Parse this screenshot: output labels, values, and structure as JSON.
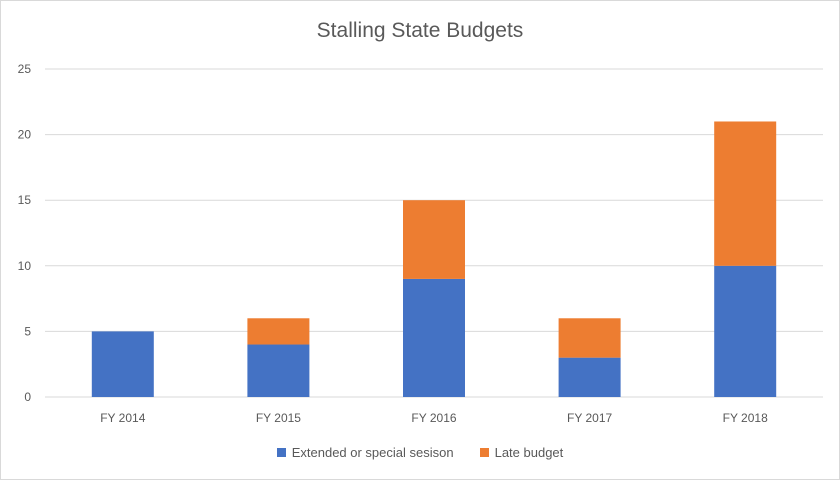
{
  "chart_data": {
    "type": "bar",
    "stacked": true,
    "title": "Stalling State Budgets",
    "categories": [
      "FY 2014",
      "FY 2015",
      "FY 2016",
      "FY 2017",
      "FY 2018"
    ],
    "series": [
      {
        "name": "Extended or special sesison",
        "color": "#4472C4",
        "values": [
          5,
          4,
          9,
          3,
          10
        ]
      },
      {
        "name": "Late budget",
        "color": "#ED7D31",
        "values": [
          0,
          2,
          6,
          3,
          11
        ]
      }
    ],
    "ylim": [
      0,
      25
    ],
    "yticks": [
      0,
      5,
      10,
      15,
      20,
      25
    ],
    "grid": true,
    "legend_position": "bottom"
  }
}
